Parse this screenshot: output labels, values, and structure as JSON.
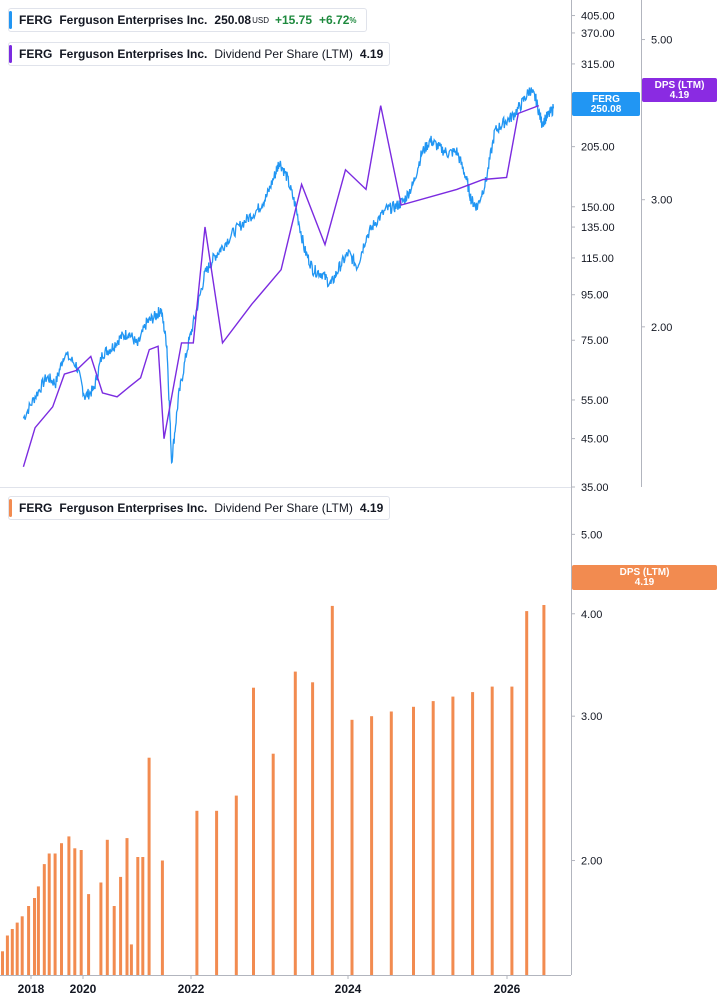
{
  "legend1": {
    "ticker": "FERG",
    "name": "Ferguson Enterprises Inc.",
    "price": "250.08",
    "currency": "USD",
    "change": "+15.75",
    "change_pct": "+6.72",
    "pct_sign": "%",
    "color": "#2196f3"
  },
  "legend2": {
    "ticker": "FERG",
    "name": "Ferguson Enterprises Inc.",
    "metric": "Dividend Per Share (LTM)",
    "value": "4.19",
    "color": "#7b2be0"
  },
  "legend3": {
    "ticker": "FERG",
    "name": "Ferguson Enterprises Inc.",
    "metric": "Dividend Per Share (LTM)",
    "value": "4.19",
    "color": "#f28b50"
  },
  "chart_data": [
    {
      "type": "line",
      "panel": "top",
      "yscale": "log",
      "price_axis": {
        "ticks": [
          "405.00",
          "370.00",
          "315.00",
          "205.00",
          "150.00",
          "135.00",
          "115.00",
          "95.00",
          "75.00",
          "55.00",
          "45.00",
          "35.00"
        ],
        "range": [
          35,
          430
        ]
      },
      "dps_axis": {
        "ticks": [
          "5.00",
          "3.00",
          "2.00"
        ],
        "range": [
          1.2,
          5.6
        ]
      },
      "price_tag": {
        "label": "FERG",
        "value": "250.08",
        "color": "#2196f3"
      },
      "dps_tag": {
        "label": "DPS (LTM)",
        "value": "4.19",
        "color": "#8a2be2"
      },
      "series": [
        {
          "name": "FERG",
          "color": "#2196f3",
          "points": [
            [
              2017.6,
              50
            ],
            [
              2017.8,
              56
            ],
            [
              2018.0,
              62
            ],
            [
              2018.15,
              60
            ],
            [
              2018.3,
              70
            ],
            [
              2018.5,
              66
            ],
            [
              2018.65,
              56
            ],
            [
              2018.8,
              58
            ],
            [
              2018.95,
              70
            ],
            [
              2019.1,
              72
            ],
            [
              2019.25,
              76
            ],
            [
              2019.4,
              78
            ],
            [
              2019.55,
              73
            ],
            [
              2019.7,
              82
            ],
            [
              2019.85,
              85
            ],
            [
              2019.95,
              88
            ],
            [
              2020.05,
              73
            ],
            [
              2020.13,
              40
            ],
            [
              2020.25,
              56
            ],
            [
              2020.4,
              72
            ],
            [
              2020.55,
              87
            ],
            [
              2020.7,
              106
            ],
            [
              2020.85,
              115
            ],
            [
              2021.0,
              122
            ],
            [
              2021.2,
              132
            ],
            [
              2021.4,
              140
            ],
            [
              2021.6,
              148
            ],
            [
              2021.75,
              158
            ],
            [
              2021.9,
              178
            ],
            [
              2021.97,
              190
            ],
            [
              2022.1,
              175
            ],
            [
              2022.25,
              150
            ],
            [
              2022.4,
              120
            ],
            [
              2022.55,
              108
            ],
            [
              2022.7,
              106
            ],
            [
              2022.85,
              100
            ],
            [
              2023.0,
              110
            ],
            [
              2023.15,
              118
            ],
            [
              2023.3,
              110
            ],
            [
              2023.45,
              128
            ],
            [
              2023.6,
              138
            ],
            [
              2023.8,
              148
            ],
            [
              2023.95,
              150
            ],
            [
              2024.1,
              155
            ],
            [
              2024.25,
              168
            ],
            [
              2024.4,
              198
            ],
            [
              2024.55,
              212
            ],
            [
              2024.7,
              204
            ],
            [
              2024.85,
              198
            ],
            [
              2025.0,
              200
            ],
            [
              2025.15,
              176
            ],
            [
              2025.25,
              155
            ],
            [
              2025.35,
              150
            ],
            [
              2025.5,
              172
            ],
            [
              2025.65,
              222
            ],
            [
              2025.8,
              232
            ],
            [
              2025.95,
              240
            ],
            [
              2026.1,
              255
            ],
            [
              2026.25,
              276
            ],
            [
              2026.35,
              262
            ],
            [
              2026.45,
              232
            ],
            [
              2026.55,
              240
            ],
            [
              2026.65,
              250
            ]
          ]
        },
        {
          "name": "DPS (LTM)",
          "color": "#7b2be0",
          "points": [
            [
              2017.6,
              1.28
            ],
            [
              2017.8,
              1.45
            ],
            [
              2018.1,
              1.55
            ],
            [
              2018.3,
              1.72
            ],
            [
              2018.5,
              1.74
            ],
            [
              2018.75,
              1.82
            ],
            [
              2018.95,
              1.62
            ],
            [
              2019.2,
              1.6
            ],
            [
              2019.4,
              1.65
            ],
            [
              2019.6,
              1.7
            ],
            [
              2019.75,
              1.86
            ],
            [
              2019.9,
              1.88
            ],
            [
              2020.0,
              1.4
            ],
            [
              2020.3,
              1.9
            ],
            [
              2020.5,
              1.9
            ],
            [
              2020.7,
              2.75
            ],
            [
              2021.0,
              1.9
            ],
            [
              2021.5,
              2.15
            ],
            [
              2022.0,
              2.4
            ],
            [
              2022.35,
              3.15
            ],
            [
              2022.75,
              2.6
            ],
            [
              2023.1,
              3.3
            ],
            [
              2023.45,
              3.1
            ],
            [
              2023.7,
              4.05
            ],
            [
              2024.05,
              2.95
            ],
            [
              2025.0,
              3.1
            ],
            [
              2025.45,
              3.2
            ],
            [
              2025.85,
              3.22
            ],
            [
              2026.05,
              3.95
            ],
            [
              2026.4,
              4.05
            ]
          ]
        }
      ]
    },
    {
      "type": "bar",
      "panel": "bottom",
      "yscale": "log",
      "dps_axis": {
        "ticks": [
          "5.00",
          "4.00",
          "3.00",
          "2.00"
        ],
        "range": [
          1.45,
          5.6
        ]
      },
      "dps_tag": {
        "label": "DPS (LTM)",
        "value": "4.19",
        "color": "#f28b50"
      },
      "x_axis": {
        "ticks": [
          "2018",
          "2020",
          "2022",
          "2024",
          "2026"
        ]
      },
      "series": [
        {
          "name": "DPS (LTM)",
          "color": "#f28b50",
          "points": [
            [
              2017.35,
              1.55
            ],
            [
              2017.45,
              1.62
            ],
            [
              2017.55,
              1.65
            ],
            [
              2017.65,
              1.68
            ],
            [
              2017.75,
              1.71
            ],
            [
              2017.88,
              1.76
            ],
            [
              2018.0,
              1.8
            ],
            [
              2018.08,
              1.86
            ],
            [
              2018.2,
              1.98
            ],
            [
              2018.3,
              2.04
            ],
            [
              2018.42,
              2.04
            ],
            [
              2018.55,
              2.1
            ],
            [
              2018.7,
              2.14
            ],
            [
              2018.82,
              2.07
            ],
            [
              2018.95,
              2.06
            ],
            [
              2019.1,
              1.82
            ],
            [
              2019.35,
              1.88
            ],
            [
              2019.48,
              2.12
            ],
            [
              2019.62,
              1.76
            ],
            [
              2019.75,
              1.91
            ],
            [
              2019.88,
              2.13
            ],
            [
              2019.97,
              1.58
            ],
            [
              2020.1,
              2.02
            ],
            [
              2020.2,
              2.02
            ],
            [
              2020.33,
              2.67
            ],
            [
              2020.6,
              2.0
            ],
            [
              2021.3,
              2.3
            ],
            [
              2021.7,
              2.3
            ],
            [
              2022.1,
              2.4
            ],
            [
              2022.45,
              3.25
            ],
            [
              2022.85,
              2.7
            ],
            [
              2023.3,
              3.4
            ],
            [
              2023.65,
              3.3
            ],
            [
              2024.05,
              4.09
            ],
            [
              2024.45,
              2.97
            ],
            [
              2024.85,
              3.0
            ],
            [
              2025.25,
              3.04
            ],
            [
              2025.7,
              3.08
            ],
            [
              2026.1,
              3.13
            ],
            [
              2026.5,
              3.17
            ],
            [
              2026.9,
              3.21
            ],
            [
              2027.3,
              3.26
            ],
            [
              2027.7,
              3.26
            ],
            [
              2028.0,
              4.03
            ],
            [
              2028.35,
              4.1
            ]
          ]
        }
      ]
    }
  ]
}
